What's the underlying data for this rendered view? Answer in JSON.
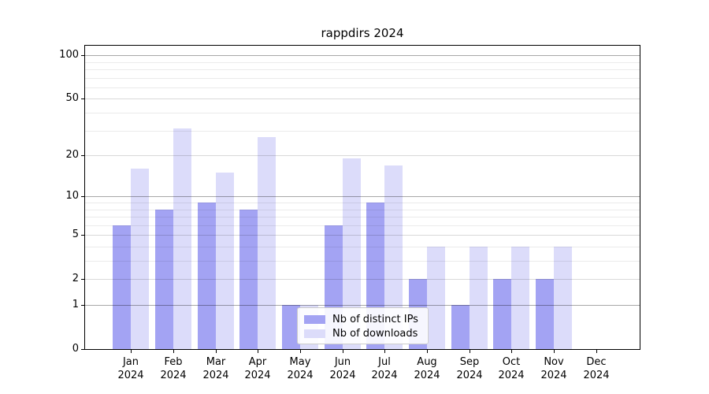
{
  "title": "rappdirs 2024",
  "chart_data": {
    "type": "bar",
    "title": "rappdirs 2024",
    "categories": [
      "Jan 2024",
      "Feb 2024",
      "Mar 2024",
      "Apr 2024",
      "May 2024",
      "Jun 2024",
      "Jul 2024",
      "Aug 2024",
      "Sep 2024",
      "Oct 2024",
      "Nov 2024",
      "Dec 2024"
    ],
    "series": [
      {
        "name": "Nb of distinct IPs",
        "color": "#a3a3f3",
        "values": [
          6,
          8,
          9,
          8,
          1,
          6,
          9,
          2,
          1,
          2,
          2,
          0
        ]
      },
      {
        "name": "Nb of downloads",
        "color": "#dcdcfa",
        "values": [
          16,
          31,
          15,
          27,
          1,
          19,
          17,
          4,
          4,
          4,
          4,
          0
        ]
      }
    ],
    "yscale": "log1p",
    "ylim": [
      0,
      116
    ],
    "y_ticks": [
      0,
      1,
      2,
      5,
      10,
      20,
      50,
      100
    ],
    "y_mid_gridlines": [
      2,
      5,
      20,
      50
    ],
    "y_major_gridlines": [
      1,
      10,
      100
    ],
    "y_minor_gridlines": [
      3,
      4,
      6,
      7,
      8,
      9,
      30,
      40,
      60,
      70,
      80,
      90
    ],
    "grid": true,
    "legend_position": "lower center",
    "colors": {
      "axis": "#000000",
      "background": "#ffffff"
    }
  }
}
